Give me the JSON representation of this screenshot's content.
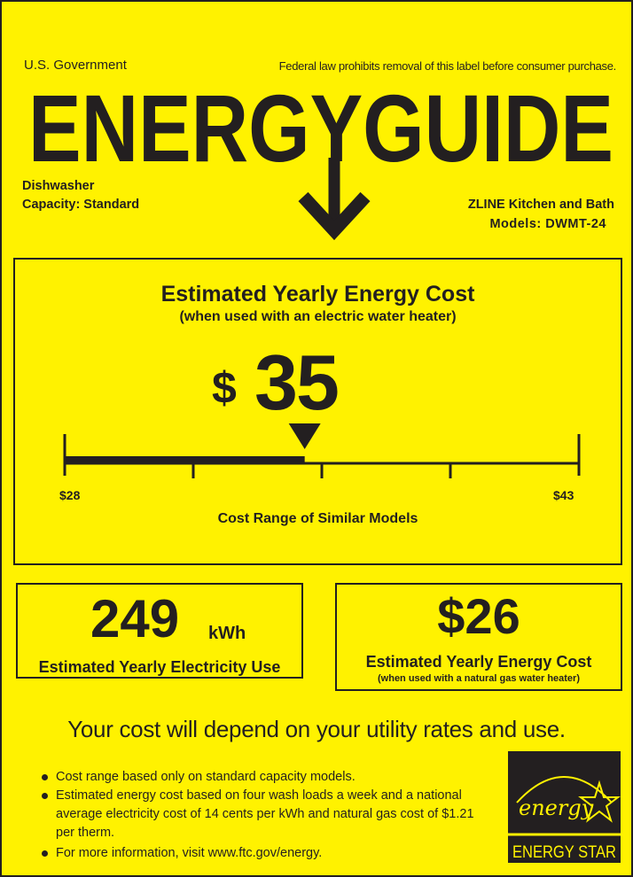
{
  "header": {
    "issuer": "U.S. Government",
    "notice": "Federal law prohibits removal of this label before consumer purchase.",
    "logo_text": "ENERGYGUIDE"
  },
  "product": {
    "type": "Dishwasher",
    "capacity": "Capacity: Standard",
    "manufacturer": "ZLINE Kitchen and Bath",
    "models": "Models: DWMT-24"
  },
  "main_cost": {
    "title": "Estimated Yearly Energy Cost",
    "subtitle": "(when used with an electric water heater)",
    "currency": "$",
    "value": "35",
    "range_min_label": "$28",
    "range_max_label": "$43",
    "range_min": 28,
    "range_max": 43,
    "cost": 35,
    "range_caption": "Cost Range of Similar Models"
  },
  "electricity": {
    "value": "249",
    "unit": "kWh",
    "label": "Estimated Yearly Electricity Use"
  },
  "gas_cost": {
    "value": "$26",
    "label": "Estimated Yearly Energy Cost",
    "sublabel": "(when used with a natural gas water heater)"
  },
  "disclaimer": "Your cost will depend on your utility rates and use.",
  "bullets": [
    "Cost range based only on standard capacity models.",
    "Estimated energy cost based on four wash loads a week and a national average electricity cost of 14 cents per kWh and natural gas cost of $1.21 per therm.",
    "For more information, visit www.ftc.gov/energy."
  ],
  "energy_star": {
    "script": "energy",
    "label": "ENERGY STAR"
  },
  "colors": {
    "background": "#fff200",
    "ink": "#231f20"
  }
}
